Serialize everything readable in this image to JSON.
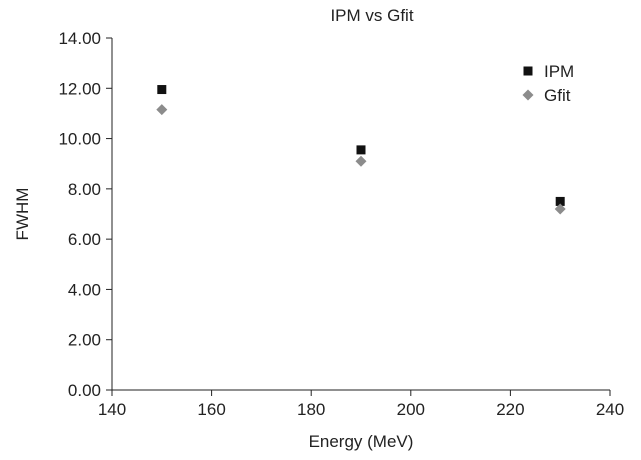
{
  "chart_data": {
    "type": "scatter",
    "title": "IPM vs Gfit",
    "xlabel": "Energy (MeV)",
    "ylabel": "FWHM",
    "xlim": [
      140,
      240
    ],
    "ylim": [
      0,
      14
    ],
    "x_ticks": [
      "140",
      "160",
      "180",
      "200",
      "220",
      "240"
    ],
    "y_ticks": [
      "0.00",
      "2.00",
      "4.00",
      "6.00",
      "8.00",
      "10.00",
      "12.00",
      "14.00"
    ],
    "grid": false,
    "legend_position": "top-right",
    "series": [
      {
        "name": "IPM",
        "marker": "square",
        "color": "#111111",
        "points": [
          {
            "x": 150,
            "y": 11.95
          },
          {
            "x": 190,
            "y": 9.55
          },
          {
            "x": 230,
            "y": 7.5
          }
        ]
      },
      {
        "name": "Gfit",
        "marker": "diamond",
        "color": "#8c8c8c",
        "points": [
          {
            "x": 150,
            "y": 11.15
          },
          {
            "x": 190,
            "y": 9.1
          },
          {
            "x": 230,
            "y": 7.2
          }
        ]
      }
    ]
  }
}
